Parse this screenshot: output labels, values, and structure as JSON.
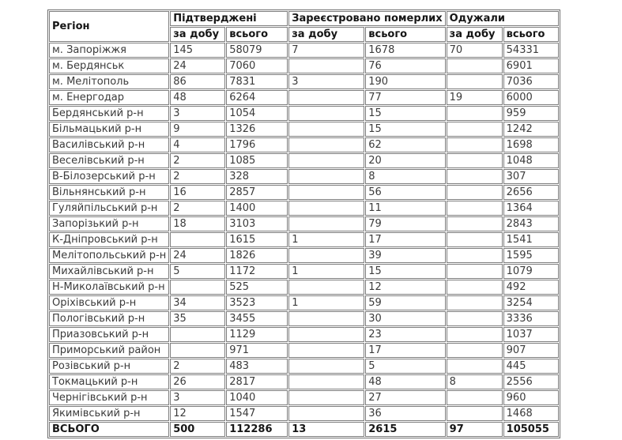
{
  "colors": {
    "background": "#ffffff",
    "border": "#7e7e7e",
    "text": "#3b3b3b",
    "header_text": "#161616"
  },
  "table": {
    "header": {
      "region": "Регіон",
      "groups": [
        {
          "label": "Підтверджені",
          "sub": [
            "за добу",
            "всього"
          ]
        },
        {
          "label": "Зареєстровано померлих",
          "sub": [
            "за добу",
            "всього"
          ]
        },
        {
          "label": "Одужали",
          "sub": [
            "за добу",
            "всього"
          ]
        }
      ]
    },
    "rows": [
      {
        "region": "м. Запоріжжя",
        "values": [
          "145",
          "58079",
          "7",
          "1678",
          "70",
          "54331"
        ]
      },
      {
        "region": "м. Бердянськ",
        "values": [
          "24",
          "7060",
          "",
          "76",
          "",
          "6901"
        ]
      },
      {
        "region": "м. Мелітополь",
        "values": [
          "86",
          "7831",
          "3",
          "190",
          "",
          "7036"
        ]
      },
      {
        "region": "м. Енергодар",
        "values": [
          "48",
          "6264",
          "",
          "77",
          "19",
          "6000"
        ]
      },
      {
        "region": "Бердянський р-н",
        "values": [
          "3",
          "1054",
          "",
          "15",
          "",
          "959"
        ]
      },
      {
        "region": "Більмацький р-н",
        "values": [
          "9",
          "1326",
          "",
          "15",
          "",
          "1242"
        ]
      },
      {
        "region": "Василівський р-н",
        "values": [
          "4",
          "1796",
          "",
          "62",
          "",
          "1698"
        ]
      },
      {
        "region": "Веселівський р-н",
        "values": [
          "2",
          "1085",
          "",
          "20",
          "",
          "1048"
        ]
      },
      {
        "region": "В-Білозерський р-н",
        "values": [
          "2",
          "328",
          "",
          "8",
          "",
          "307"
        ]
      },
      {
        "region": "Вільнянський р-н",
        "values": [
          "16",
          "2857",
          "",
          "56",
          "",
          "2656"
        ]
      },
      {
        "region": "Гуляйпільський р-н",
        "values": [
          "2",
          "1400",
          "",
          "11",
          "",
          "1364"
        ]
      },
      {
        "region": "Запорізький р-н",
        "values": [
          "18",
          "3103",
          "",
          "79",
          "",
          "2843"
        ]
      },
      {
        "region": "К-Дніпровський р-н",
        "values": [
          "",
          "1615",
          "1",
          "17",
          "",
          "1541"
        ]
      },
      {
        "region": "Мелітопольський р-н",
        "values": [
          "24",
          "1826",
          "",
          "39",
          "",
          "1595"
        ]
      },
      {
        "region": "Михайлівський р-н",
        "values": [
          "5",
          "1172",
          "1",
          "15",
          "",
          "1079"
        ]
      },
      {
        "region": "Н-Миколаївський  р-н",
        "values": [
          "",
          "525",
          "",
          "12",
          "",
          "492"
        ]
      },
      {
        "region": "Оріхівський р-н",
        "values": [
          "34",
          "3523",
          "1",
          "59",
          "",
          "3254"
        ]
      },
      {
        "region": "Пологівський р-н",
        "values": [
          "35",
          "3455",
          "",
          "30",
          "",
          "3336"
        ]
      },
      {
        "region": "Приазовський р-н",
        "values": [
          "",
          "1129",
          "",
          "23",
          "",
          "1037"
        ]
      },
      {
        "region": "Приморський район",
        "values": [
          "",
          "971",
          "",
          "17",
          "",
          "907"
        ]
      },
      {
        "region": "Розівський р-н",
        "values": [
          "2",
          "483",
          "",
          "5",
          "",
          "445"
        ]
      },
      {
        "region": "Токмацький р-н",
        "values": [
          "26",
          "2817",
          "",
          "48",
          "8",
          "2556"
        ]
      },
      {
        "region": "Чернігівський р-н",
        "values": [
          "3",
          "1040",
          "",
          "27",
          "",
          "960"
        ]
      },
      {
        "region": "Якимівський р-н",
        "values": [
          "12",
          "1547",
          "",
          "36",
          "",
          "1468"
        ]
      }
    ],
    "total": {
      "label": "ВСЬОГО",
      "values": [
        "500",
        "112286",
        "13",
        "2615",
        "97",
        "105055"
      ]
    }
  }
}
